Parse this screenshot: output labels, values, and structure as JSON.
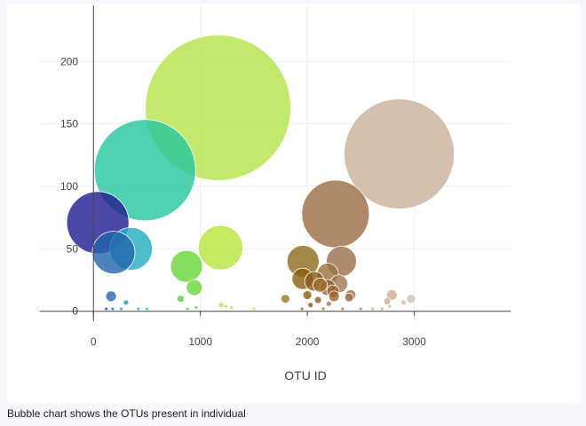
{
  "chart_data": {
    "type": "scatter",
    "mode": "bubble",
    "title": "",
    "xlabel": "OTU ID",
    "ylabel": "",
    "xlim": [
      -500,
      3900
    ],
    "ylim": [
      -8,
      245
    ],
    "x_ticks": [
      0,
      1000,
      2000,
      3000
    ],
    "y_ticks": [
      0,
      50,
      100,
      150,
      200
    ],
    "x_tick_labels": [
      "0",
      "1000",
      "2000",
      "3000"
    ],
    "y_tick_labels": [
      "0",
      "50",
      "100",
      "150",
      "200"
    ],
    "grid": true,
    "legend": "none",
    "points": [
      {
        "x": 1166,
        "y": 163,
        "r": 82,
        "color": "#b3e34a"
      },
      {
        "x": 2859,
        "y": 126,
        "r": 62,
        "color": "#c9b09a"
      },
      {
        "x": 482,
        "y": 113,
        "r": 57,
        "color": "#26c59e"
      },
      {
        "x": 2264,
        "y": 78,
        "r": 38,
        "color": "#9a6a41"
      },
      {
        "x": 41,
        "y": 71,
        "r": 35,
        "color": "#1f1a8e"
      },
      {
        "x": 1189,
        "y": 51,
        "r": 25,
        "color": "#b8e43d"
      },
      {
        "x": 352,
        "y": 50,
        "r": 24,
        "color": "#22aec1"
      },
      {
        "x": 189,
        "y": 47,
        "r": 24,
        "color": "#2164ad"
      },
      {
        "x": 2318,
        "y": 40,
        "r": 17,
        "color": "#9a6d4a"
      },
      {
        "x": 1960,
        "y": 40,
        "r": 18,
        "color": "#8f6a1c"
      },
      {
        "x": 870,
        "y": 36,
        "r": 18,
        "color": "#6ad63a"
      },
      {
        "x": 2190,
        "y": 30,
        "r": 12,
        "color": "#9b7040"
      },
      {
        "x": 1957,
        "y": 26,
        "r": 12,
        "color": "#8a5e12"
      },
      {
        "x": 2295,
        "y": 22,
        "r": 10,
        "color": "#a07650"
      },
      {
        "x": 2067,
        "y": 24,
        "r": 11,
        "color": "#8a5a14"
      },
      {
        "x": 2190,
        "y": 19,
        "r": 9,
        "color": "#8e5f2c"
      },
      {
        "x": 2120,
        "y": 21,
        "r": 8,
        "color": "#a06c30"
      },
      {
        "x": 943,
        "y": 19,
        "r": 9,
        "color": "#6ad63a"
      },
      {
        "x": 2240,
        "y": 16,
        "r": 7,
        "color": "#9b6a40"
      },
      {
        "x": 2404,
        "y": 13,
        "r": 6,
        "color": "#a0744a"
      },
      {
        "x": 2790,
        "y": 13,
        "r": 6,
        "color": "#c9ad95"
      },
      {
        "x": 2000,
        "y": 13,
        "r": 5,
        "color": "#8a5e12"
      },
      {
        "x": 2250,
        "y": 12,
        "r": 6,
        "color": "#97673a"
      },
      {
        "x": 2970,
        "y": 10,
        "r": 5,
        "color": "#d2bba8"
      },
      {
        "x": 2390,
        "y": 11,
        "r": 5,
        "color": "#a0704a"
      },
      {
        "x": 1795,
        "y": 10,
        "r": 5,
        "color": "#9a7a1e"
      },
      {
        "x": 165,
        "y": 12,
        "r": 6,
        "color": "#2565b0"
      },
      {
        "x": 2746,
        "y": 8,
        "r": 4,
        "color": "#c9ad95"
      },
      {
        "x": 2100,
        "y": 9,
        "r": 4,
        "color": "#8e6030"
      },
      {
        "x": 816,
        "y": 10,
        "r": 4,
        "color": "#58d23a"
      },
      {
        "x": 305,
        "y": 7,
        "r": 3,
        "color": "#2399c7"
      },
      {
        "x": 2900,
        "y": 7,
        "r": 3,
        "color": "#d2bba8"
      },
      {
        "x": 2200,
        "y": 6,
        "r": 3,
        "color": "#a07450"
      },
      {
        "x": 2030,
        "y": 5,
        "r": 3,
        "color": "#8a5a14"
      },
      {
        "x": 2770,
        "y": 4,
        "r": 2,
        "color": "#c9ad95"
      },
      {
        "x": 1195,
        "y": 5,
        "r": 3,
        "color": "#b8e43d"
      },
      {
        "x": 1240,
        "y": 4,
        "r": 2,
        "color": "#b8e43d"
      },
      {
        "x": 1290,
        "y": 3,
        "r": 2,
        "color": "#b8e43d"
      },
      {
        "x": 1500,
        "y": 2,
        "r": 2,
        "color": "#cde24a"
      },
      {
        "x": 120,
        "y": 2,
        "r": 2,
        "color": "#2b3fa0"
      },
      {
        "x": 180,
        "y": 2,
        "r": 2,
        "color": "#2164ad"
      },
      {
        "x": 260,
        "y": 2,
        "r": 2,
        "color": "#2399c7"
      },
      {
        "x": 420,
        "y": 2,
        "r": 2,
        "color": "#22aec1"
      },
      {
        "x": 500,
        "y": 2,
        "r": 2,
        "color": "#26c59e"
      },
      {
        "x": 880,
        "y": 2,
        "r": 2,
        "color": "#6ad63a"
      },
      {
        "x": 960,
        "y": 3,
        "r": 2,
        "color": "#6ad63a"
      },
      {
        "x": 1950,
        "y": 2,
        "r": 2,
        "color": "#8f6a1c"
      },
      {
        "x": 2150,
        "y": 2,
        "r": 2,
        "color": "#9b7040"
      },
      {
        "x": 2330,
        "y": 2,
        "r": 2,
        "color": "#a07650"
      },
      {
        "x": 2500,
        "y": 2,
        "r": 2,
        "color": "#b08a6a"
      },
      {
        "x": 2610,
        "y": 2,
        "r": 2,
        "color": "#c9b09a"
      },
      {
        "x": 2700,
        "y": 2,
        "r": 2,
        "color": "#c9b09a"
      }
    ]
  },
  "caption": "Bubble chart shows the OTUs present in individual"
}
